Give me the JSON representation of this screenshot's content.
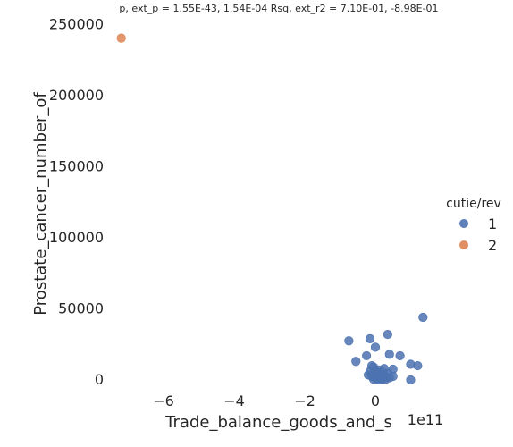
{
  "chart_data": {
    "type": "scatter",
    "title": "p, ext_p = 1.55E-43, 1.54E-04 Rsq, ext_r2 = 7.10E-01, -8.98E-01",
    "xlabel": "Trade_balance_goods_and_s",
    "ylabel": "Prostate_cancer_number_of",
    "x_offset_label": "1e11",
    "x_ticks": [
      -6,
      -4,
      -2,
      0
    ],
    "x_tick_labels": [
      "−6",
      "−4",
      "−2",
      "0"
    ],
    "y_ticks": [
      0,
      50000,
      100000,
      150000,
      200000,
      250000
    ],
    "y_tick_labels": [
      "0",
      "50000",
      "100000",
      "150000",
      "200000",
      "250000"
    ],
    "xlim": [
      -7.8,
      1.9
    ],
    "ylim": [
      -15000,
      258000
    ],
    "grid": false,
    "legend": {
      "title": "cutie/rev",
      "placement": "right"
    },
    "series": [
      {
        "name": "1",
        "color": "#4c72b0",
        "points": [
          [
            1.35,
            43500
          ],
          [
            0.35,
            31500
          ],
          [
            -0.75,
            27000
          ],
          [
            -0.15,
            28500
          ],
          [
            0.0,
            22500
          ],
          [
            0.4,
            17500
          ],
          [
            0.7,
            16500
          ],
          [
            -0.25,
            16500
          ],
          [
            -0.55,
            12500
          ],
          [
            1.0,
            10500
          ],
          [
            1.2,
            9500
          ],
          [
            -0.1,
            9500
          ],
          [
            -0.05,
            8500
          ],
          [
            0.25,
            7500
          ],
          [
            0.5,
            7000
          ],
          [
            0.1,
            6500
          ],
          [
            -0.15,
            5500
          ],
          [
            0.2,
            5000
          ],
          [
            0.35,
            4000
          ],
          [
            0.05,
            4000
          ],
          [
            -0.2,
            3000
          ],
          [
            0.1,
            2500
          ],
          [
            0.5,
            2000
          ],
          [
            0.3,
            1500
          ],
          [
            0.0,
            1000
          ],
          [
            0.15,
            500
          ],
          [
            0.3,
            0
          ],
          [
            -0.05,
            0
          ],
          [
            0.1,
            -500
          ],
          [
            1.0,
            -500
          ],
          [
            0.25,
            3000
          ],
          [
            0.0,
            6000
          ],
          [
            0.4,
            1000
          ],
          [
            -0.1,
            2000
          ],
          [
            0.2,
            0
          ],
          [
            0.05,
            200
          ]
        ]
      },
      {
        "name": "2",
        "color": "#dd8452",
        "points": [
          [
            -7.2,
            240000
          ]
        ]
      }
    ]
  }
}
